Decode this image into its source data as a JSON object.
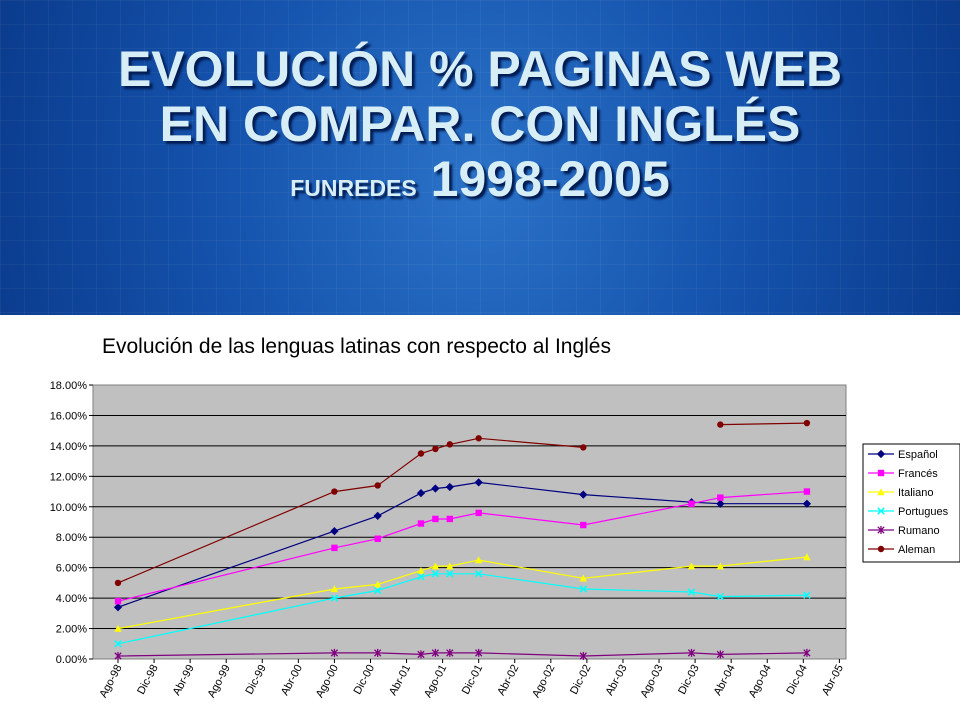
{
  "slide": {
    "title_line1": "EVOLUCIÓN % PAGINAS WEB",
    "title_line2": "EN COMPAR. CON INGLÉS",
    "title_small": "FUNREDES",
    "title_years": "1998-2005"
  },
  "chart_data": {
    "type": "line",
    "title": "Evolución de las lenguas latinas con respecto al Inglés",
    "xlabel": "",
    "ylabel": "",
    "ylim": [
      0,
      18
    ],
    "y_ticks": [
      "0.00%",
      "2.00%",
      "4.00%",
      "6.00%",
      "8.00%",
      "10.00%",
      "12.00%",
      "14.00%",
      "16.00%",
      "18.00%"
    ],
    "categories": [
      "Ago-98",
      "Dic-98",
      "Abr-99",
      "Ago-99",
      "Dic-99",
      "Abr-00",
      "Ago-00",
      "Dic-00",
      "Abr-01",
      "Ago-01",
      "Dic-01",
      "Abr-02",
      "Ago-02",
      "Dic-02",
      "Abr-03",
      "Ago-03",
      "Dic-03",
      "Abr-04",
      "Ago-04",
      "Dic-04",
      "Abr-05"
    ],
    "x": [
      0,
      6,
      7.2,
      8.4,
      8.8,
      9.2,
      10,
      12.9,
      15.9,
      16.7,
      19.1
    ],
    "grid": true,
    "legend_position": "right",
    "series": [
      {
        "name": "Español",
        "color": "#000080",
        "marker": "diamond",
        "values": [
          3.4,
          8.4,
          9.4,
          10.9,
          11.2,
          11.3,
          11.6,
          10.8,
          10.3,
          10.2,
          10.2
        ]
      },
      {
        "name": "Francés",
        "color": "#ff00ff",
        "marker": "square",
        "values": [
          3.8,
          7.3,
          7.9,
          8.9,
          9.2,
          9.2,
          9.6,
          8.8,
          10.2,
          10.6,
          11.0
        ]
      },
      {
        "name": "Italiano",
        "color": "#ffff00",
        "marker": "triangle",
        "values": [
          2.0,
          4.6,
          4.9,
          5.8,
          6.1,
          6.1,
          6.5,
          5.3,
          6.1,
          6.1,
          6.7
        ]
      },
      {
        "name": "Portugues",
        "color": "#00ffff",
        "marker": "x",
        "values": [
          1.0,
          4.0,
          4.5,
          5.4,
          5.6,
          5.6,
          5.6,
          4.6,
          4.4,
          4.1,
          4.2
        ]
      },
      {
        "name": "Rumano",
        "color": "#800080",
        "marker": "star",
        "values": [
          0.2,
          0.4,
          0.4,
          0.3,
          0.4,
          0.4,
          0.4,
          0.2,
          0.4,
          0.3,
          0.4
        ]
      },
      {
        "name": "Aleman",
        "color": "#800000",
        "marker": "circle",
        "values": [
          5.0,
          11.0,
          11.4,
          13.5,
          13.8,
          14.1,
          14.5,
          13.9,
          null,
          15.4,
          15.5
        ]
      }
    ]
  }
}
